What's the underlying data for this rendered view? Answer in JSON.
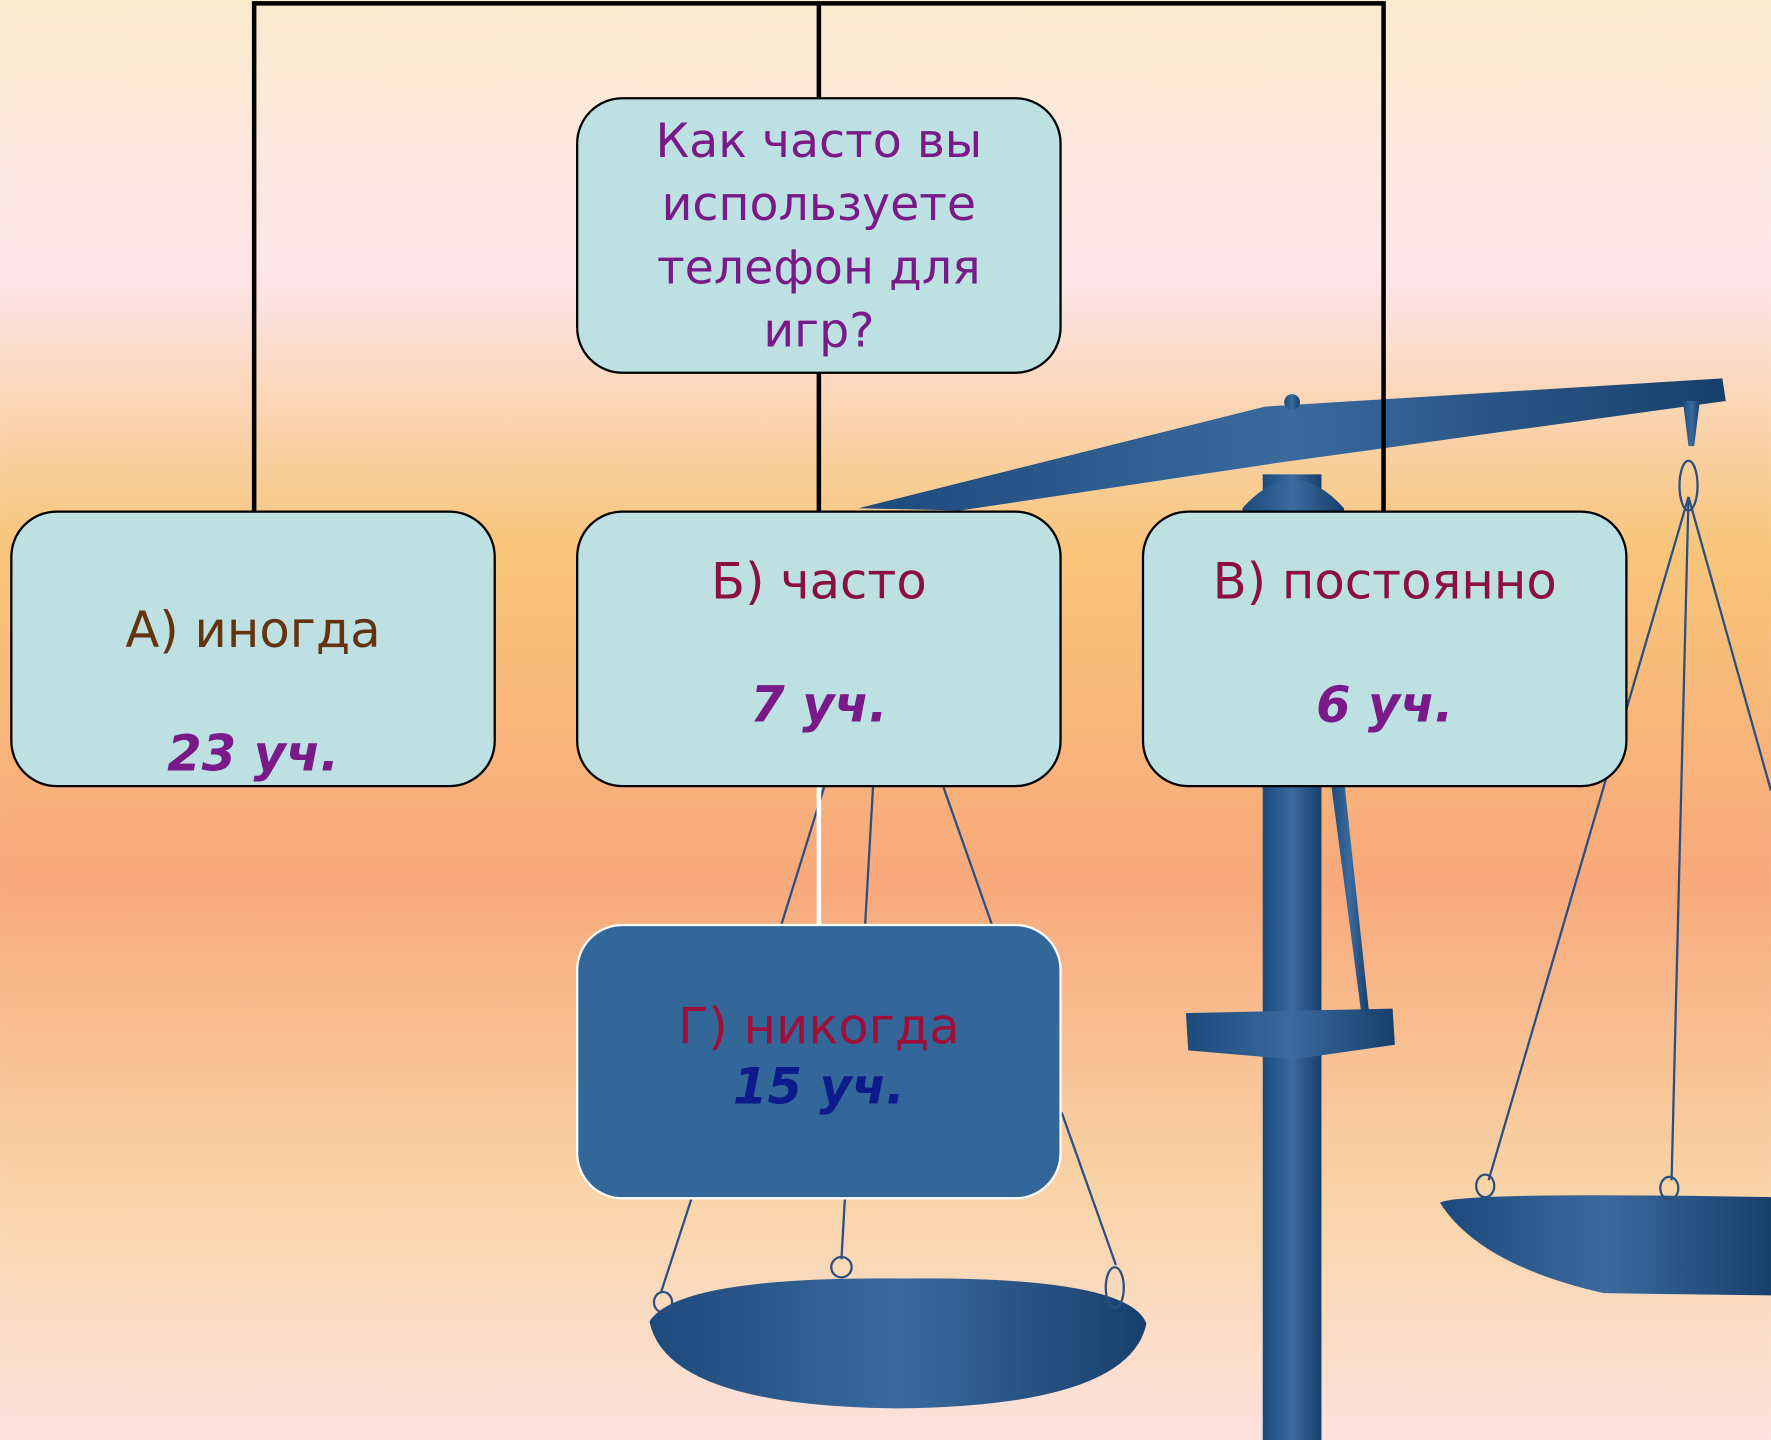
{
  "question": "Как часто вы используете телефон для игр?",
  "options": [
    {
      "label": "А) иногда",
      "count": "23 уч."
    },
    {
      "label": "Б) часто",
      "count": "7 уч."
    },
    {
      "label": "В) постоянно",
      "count": "6 уч."
    },
    {
      "label": "Г) никогда",
      "count": "15 уч."
    }
  ]
}
